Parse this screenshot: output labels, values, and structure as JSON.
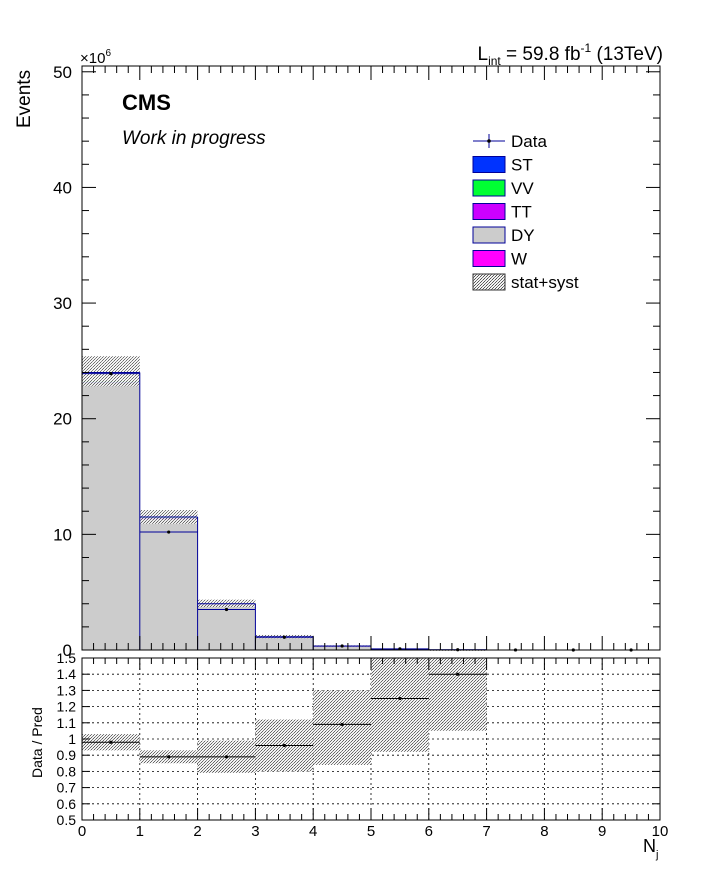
{
  "header": {
    "lumi_prefix": "L",
    "lumi_sub": "int",
    "lumi_value": " = 59.8 fb",
    "lumi_sup": "-1",
    "lumi_energy": " (13TeV)",
    "exponent_base": "×10",
    "exponent_power": "6",
    "cms_label": "CMS",
    "wip_label": "Work in progress"
  },
  "legend": {
    "position": "top-right",
    "entries": [
      {
        "label": "Data",
        "kind": "marker",
        "color": "#000099"
      },
      {
        "label": "ST",
        "kind": "fill",
        "color": "#0033ff"
      },
      {
        "label": "VV",
        "kind": "fill",
        "color": "#00ff33"
      },
      {
        "label": "TT",
        "kind": "fill",
        "color": "#cc00ff"
      },
      {
        "label": "DY",
        "kind": "fill",
        "color": "#cccccc"
      },
      {
        "label": "W",
        "kind": "fill",
        "color": "#ff00ff"
      },
      {
        "label": "stat+syst",
        "kind": "hatch",
        "color": "#555555"
      }
    ]
  },
  "chart_data": [
    {
      "type": "bar",
      "ylabel": "Events",
      "y_multiplier": "×10^6",
      "xlim": [
        0,
        10
      ],
      "ylim": [
        0,
        50.5
      ],
      "yticks": [
        "0",
        "10",
        "20",
        "30",
        "40",
        "50"
      ],
      "bin_edges": [
        0,
        1,
        2,
        3,
        4,
        5,
        6,
        7,
        8,
        9,
        10
      ],
      "series": [
        {
          "name": "DY",
          "color": "#cccccc",
          "values": [
            23.1,
            11.3,
            3.95,
            1.12,
            0.33,
            0.08,
            0.01,
            0.0,
            0.0,
            0.0
          ]
        },
        {
          "name": "TT",
          "color": "#cc00ff",
          "values": [
            0.05,
            0.1,
            0.05,
            0.02,
            0.01,
            0.0,
            0.0,
            0.0,
            0.0,
            0.0
          ]
        },
        {
          "name": "ST",
          "color": "#0033ff",
          "values": [
            0.02,
            0.03,
            0.02,
            0.01,
            0.0,
            0.0,
            0.0,
            0.0,
            0.0,
            0.0
          ]
        },
        {
          "name": "VV",
          "color": "#00ff33",
          "values": [
            0.03,
            0.02,
            0.01,
            0.0,
            0.0,
            0.0,
            0.0,
            0.0,
            0.0,
            0.0
          ]
        },
        {
          "name": "W",
          "color": "#ff00ff",
          "values": [
            0.0,
            0.0,
            0.0,
            0.0,
            0.0,
            0.0,
            0.0,
            0.0,
            0.0,
            0.0
          ]
        }
      ],
      "stack_total": [
        24.0,
        11.5,
        4.0,
        1.15,
        0.34,
        0.08,
        0.01,
        0.0,
        0.0,
        0.0
      ],
      "uncertainty_band": {
        "name": "stat+syst",
        "low": [
          22.8,
          10.9,
          3.7,
          1.02,
          0.29,
          0.06,
          0.005,
          0.0,
          0.0,
          0.0
        ],
        "high": [
          25.4,
          12.1,
          4.35,
          1.3,
          0.4,
          0.1,
          0.015,
          0.0,
          0.0,
          0.0
        ]
      },
      "data": {
        "name": "Data",
        "x": [
          0.5,
          1.5,
          2.5,
          3.5,
          4.5,
          5.5,
          6.5,
          7.5,
          8.5,
          9.5
        ],
        "y": [
          23.9,
          10.2,
          3.5,
          1.1,
          0.35,
          0.1,
          0.02,
          0.005,
          0.002,
          0.001
        ]
      }
    },
    {
      "type": "scatter",
      "xlabel": "N",
      "xlabel_sub": "j",
      "ylabel": "Data / Pred",
      "xlim": [
        0,
        10
      ],
      "ylim": [
        0.5,
        1.5
      ],
      "xticks": [
        "0",
        "1",
        "2",
        "3",
        "4",
        "5",
        "6",
        "7",
        "8",
        "9",
        "10"
      ],
      "yticks": [
        "0.5",
        "0.6",
        "0.7",
        "0.8",
        "0.9",
        "1",
        "1.1",
        "1.2",
        "1.3",
        "1.4",
        "1.5"
      ],
      "grid": true,
      "ratio": {
        "x": [
          0.5,
          1.5,
          2.5,
          3.5,
          4.5,
          5.5,
          6.5
        ],
        "y": [
          0.98,
          0.89,
          0.89,
          0.96,
          1.09,
          1.25,
          1.4
        ]
      },
      "band": {
        "low": [
          0.93,
          0.85,
          0.79,
          0.8,
          0.84,
          0.92,
          1.05
        ],
        "high": [
          1.03,
          0.93,
          0.99,
          1.12,
          1.3,
          1.52,
          1.52
        ]
      }
    }
  ]
}
